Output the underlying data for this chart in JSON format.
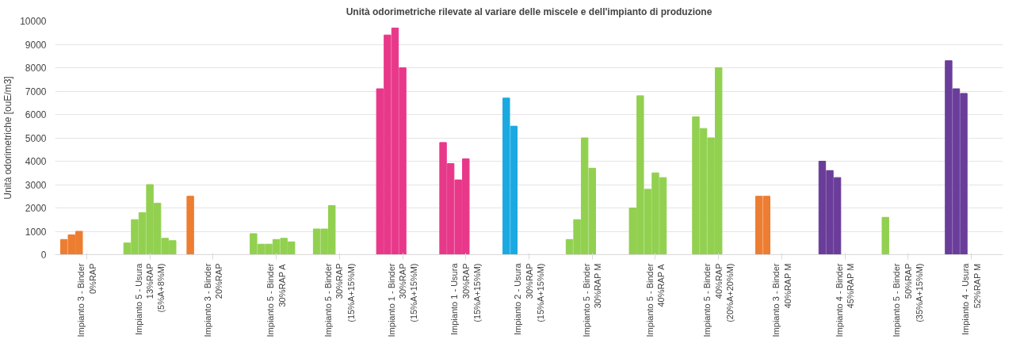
{
  "chart_data": {
    "type": "bar",
    "title": "Unità odorimetriche rilevate al variare delle miscele e dell'impianto di produzione",
    "ylabel": "Unità odorimetriche [ouE/m3]",
    "categories": [
      "Impianto 3 - Binder\n0%RAP",
      "Impianto 5 - Usura\n13%RAP\n(5%A+8%M)",
      "Impianto 3 - Binder\n20%RAP",
      "Impianto 5 - Binder\n30%RAP A",
      "Impianto 5 - Binder\n30%RAP\n(15%A+15%M)",
      "Impianto 1 - Binder\n30%RAP\n(15%A+15%M)",
      "Impianto 1 - Usura\n30%RAP\n(15%A+15%M)",
      "Impianto 2 - Usura\n30%RAP\n(15%A+15%M)",
      "Impianto 5 - Binder\n30%RAP M",
      "Impianto 5 - Binder\n40%RAP A",
      "Impianto 5 - Binder\n40%RAP\n(20%A+20%M)",
      "Impianto 3 - Binder\n40%RAP M",
      "Impianto 4 - Binder\n45%RAP M",
      "Impianto 5 - Binder\n50%RAP\n(35%A+15%M)",
      "Impianto 4 - Usura\n52%RAP M"
    ],
    "series": [
      {
        "colors": [
          "#ed7d31",
          "#92d050",
          "#ed7d31",
          "#92d050",
          "#92d050",
          "#e8388a",
          "#e8388a",
          "#1ba9e1",
          "#92d050",
          "#92d050",
          "#92d050",
          "#ed7d31",
          "#6a3d9a",
          "#92d050",
          "#6a3d9a"
        ],
        "values": [
          650,
          500,
          2500,
          900,
          1100,
          7100,
          4800,
          6700,
          650,
          2000,
          5900,
          2500,
          4000,
          1600,
          8300
        ]
      },
      {
        "colors": [
          "#ed7d31",
          "#92d050",
          "#ed7d31",
          "#92d050",
          "#92d050",
          "#e8388a",
          "#e8388a",
          "#1ba9e1",
          "#92d050",
          "#92d050",
          "#92d050",
          "#ed7d31",
          "#6a3d9a",
          "#92d050",
          "#6a3d9a"
        ],
        "values": [
          850,
          1500,
          null,
          450,
          1100,
          9400,
          3900,
          5500,
          1500,
          6800,
          5400,
          2500,
          3600,
          null,
          7100
        ]
      },
      {
        "colors": [
          "#ed7d31",
          "#92d050",
          "#ed7d31",
          "#92d050",
          "#92d050",
          "#e8388a",
          "#e8388a",
          "#1ba9e1",
          "#92d050",
          "#92d050",
          "#92d050",
          "#ed7d31",
          "#6a3d9a",
          "#92d050",
          "#6a3d9a"
        ],
        "values": [
          1000,
          1800,
          null,
          450,
          2100,
          9700,
          3200,
          null,
          5000,
          2800,
          5000,
          null,
          3300,
          null,
          6900
        ]
      },
      {
        "colors": [
          "#ed7d31",
          "#92d050",
          "#ed7d31",
          "#92d050",
          "#92d050",
          "#e8388a",
          "#e8388a",
          "#1ba9e1",
          "#92d050",
          "#92d050",
          "#92d050",
          "#ed7d31",
          "#6a3d9a",
          "#92d050",
          "#6a3d9a"
        ],
        "values": [
          null,
          3000,
          null,
          650,
          null,
          8000,
          4100,
          null,
          3700,
          3500,
          8000,
          null,
          null,
          null,
          null
        ]
      },
      {
        "colors": [
          "#ed7d31",
          "#92d050",
          "#ed7d31",
          "#92d050",
          "#92d050",
          "#e8388a",
          "#e8388a",
          "#1ba9e1",
          "#92d050",
          "#92d050",
          "#92d050",
          "#ed7d31",
          "#6a3d9a",
          "#92d050",
          "#6a3d9a"
        ],
        "values": [
          null,
          2200,
          null,
          700,
          null,
          null,
          null,
          null,
          null,
          3300,
          null,
          null,
          null,
          null,
          null
        ]
      },
      {
        "colors": [
          "#ed7d31",
          "#92d050",
          "#ed7d31",
          "#92d050",
          "#92d050",
          "#e8388a",
          "#e8388a",
          "#1ba9e1",
          "#92d050",
          "#92d050",
          "#92d050",
          "#ed7d31",
          "#6a3d9a",
          "#92d050",
          "#6a3d9a"
        ],
        "values": [
          null,
          700,
          null,
          550,
          null,
          null,
          null,
          null,
          null,
          null,
          null,
          null,
          null,
          null,
          null
        ]
      },
      {
        "colors": [
          "#ed7d31",
          "#92d050",
          "#ed7d31",
          "#92d050",
          "#92d050",
          "#e8388a",
          "#e8388a",
          "#1ba9e1",
          "#92d050",
          "#92d050",
          "#92d050",
          "#ed7d31",
          "#6a3d9a",
          "#92d050",
          "#6a3d9a"
        ],
        "values": [
          null,
          600,
          null,
          null,
          null,
          null,
          null,
          null,
          null,
          null,
          null,
          null,
          null,
          null,
          null
        ]
      }
    ],
    "ylim": [
      0,
      10000
    ],
    "yticks": [
      0,
      1000,
      2000,
      3000,
      4000,
      5000,
      6000,
      7000,
      8000,
      9000,
      10000
    ],
    "grid": "y"
  }
}
